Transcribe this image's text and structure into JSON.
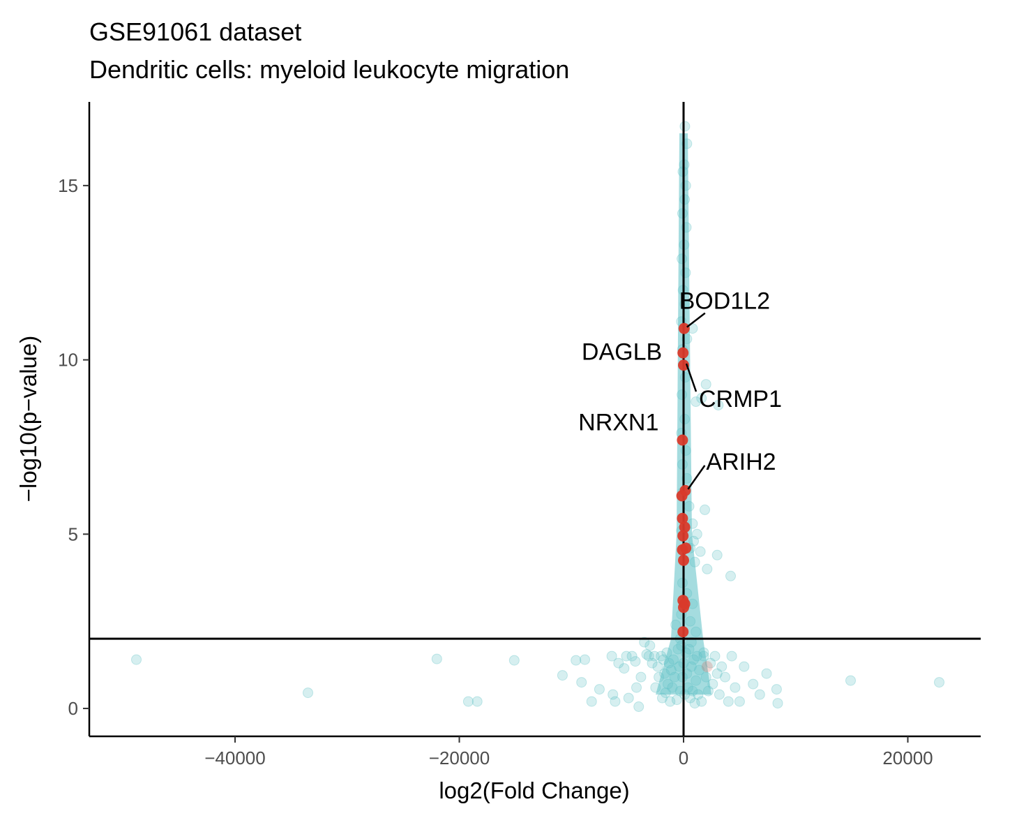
{
  "chart_data": {
    "type": "scatter",
    "title": "GSE91061 dataset",
    "subtitle": "Dendritic cells: myeloid leukocyte migration",
    "xlabel": "log2(Fold Change)",
    "ylabel": "−log10(p−value)",
    "xlim": [
      -53000,
      26500
    ],
    "ylim": [
      -0.8,
      17.4
    ],
    "x_ticks": [
      {
        "value": -40000,
        "label": "−40000"
      },
      {
        "value": -20000,
        "label": "−20000"
      },
      {
        "value": 0,
        "label": "0"
      },
      {
        "value": 20000,
        "label": "20000"
      }
    ],
    "y_ticks": [
      {
        "value": 0,
        "label": "0"
      },
      {
        "value": 5,
        "label": "5"
      },
      {
        "value": 10,
        "label": "10"
      },
      {
        "value": 15,
        "label": "15"
      }
    ],
    "reference_lines": {
      "vertical_x": 0,
      "horizontal_y": 2
    },
    "grid": false,
    "legend": "none",
    "colors": {
      "background_points": "#5bbfc4",
      "highlighted_points": "#d93a2b",
      "lines": "#000000"
    },
    "series": [
      {
        "points": [
          [
            -48800,
            1.4
          ],
          [
            -33500,
            0.45
          ],
          [
            -22000,
            1.42
          ],
          [
            -19200,
            0.2
          ],
          [
            -18400,
            0.2
          ],
          [
            -15100,
            1.38
          ],
          [
            -10800,
            0.95
          ],
          [
            -9600,
            1.38
          ],
          [
            -9100,
            0.75
          ],
          [
            -8800,
            1.4
          ],
          [
            -8200,
            0.2
          ],
          [
            -7500,
            0.55
          ],
          [
            -6400,
            1.5
          ],
          [
            -6300,
            0.4
          ],
          [
            -6100,
            0.2
          ],
          [
            -5800,
            1.3
          ],
          [
            -5300,
            1.15
          ],
          [
            -5100,
            1.5
          ],
          [
            -4900,
            0.3
          ],
          [
            -4600,
            1.5
          ],
          [
            -4300,
            1.35
          ],
          [
            -4200,
            0.6
          ],
          [
            -4000,
            0.05
          ],
          [
            -3800,
            0.9
          ],
          [
            -3500,
            1.9
          ],
          [
            -3300,
            1.55
          ],
          [
            -3100,
            1.5
          ],
          [
            -3000,
            1.8
          ],
          [
            -2800,
            1.3
          ],
          [
            -2600,
            1.5
          ],
          [
            -2500,
            0.6
          ],
          [
            -2300,
            1.2
          ],
          [
            -2200,
            0.9
          ],
          [
            -2000,
            1.5
          ],
          [
            -1900,
            0.3
          ],
          [
            -1800,
            1.4
          ],
          [
            -1700,
            1.0
          ],
          [
            -1600,
            0.45
          ],
          [
            -1500,
            1.6
          ],
          [
            -1400,
            0.7
          ],
          [
            -1300,
            1.3
          ],
          [
            -1200,
            0.2
          ],
          [
            -1100,
            1.1
          ],
          [
            -1000,
            0.6
          ],
          [
            -900,
            1.4
          ],
          [
            -800,
            0.9
          ],
          [
            -700,
            2.4
          ],
          [
            -600,
            0.25
          ],
          [
            -500,
            1.7
          ],
          [
            -400,
            1.2
          ],
          [
            -300,
            0.5
          ],
          [
            -200,
            1.8
          ],
          [
            -100,
            0.9
          ],
          [
            0,
            1.3
          ],
          [
            100,
            0.4
          ],
          [
            200,
            1.6
          ],
          [
            300,
            1.0
          ],
          [
            400,
            0.6
          ],
          [
            500,
            1.7
          ],
          [
            600,
            0.3
          ],
          [
            700,
            1.2
          ],
          [
            800,
            0.5
          ],
          [
            900,
            1.4
          ],
          [
            1000,
            0.15
          ],
          [
            1100,
            0.8
          ],
          [
            1200,
            1.5
          ],
          [
            1300,
            0.4
          ],
          [
            1400,
            1.1
          ],
          [
            1600,
            0.2
          ],
          [
            1800,
            1.6
          ],
          [
            2000,
            0.9
          ],
          [
            2200,
            0.5
          ],
          [
            2400,
            1.3
          ],
          [
            2600,
            0.7
          ],
          [
            2800,
            1.5
          ],
          [
            3000,
            1.0
          ],
          [
            3200,
            0.4
          ],
          [
            3400,
            1.2
          ],
          [
            3700,
            0.9
          ],
          [
            4000,
            0.2
          ],
          [
            4300,
            1.5
          ],
          [
            4600,
            0.6
          ],
          [
            5000,
            0.2
          ],
          [
            5400,
            1.2
          ],
          [
            6200,
            0.7
          ],
          [
            6800,
            0.4
          ],
          [
            7400,
            1.0
          ],
          [
            8300,
            0.55
          ],
          [
            8400,
            0.15
          ],
          [
            14900,
            0.8
          ],
          [
            22800,
            0.75
          ],
          [
            120,
            16.7
          ],
          [
            300,
            16.2
          ],
          [
            60,
            15.6
          ],
          [
            -60,
            15.4
          ],
          [
            200,
            15.0
          ],
          [
            100,
            14.6
          ],
          [
            -100,
            14.2
          ],
          [
            250,
            13.8
          ],
          [
            50,
            13.3
          ],
          [
            -150,
            12.9
          ],
          [
            180,
            12.5
          ],
          [
            -50,
            12.0
          ],
          [
            120,
            11.6
          ],
          [
            -200,
            11.1
          ],
          [
            800,
            10.9
          ],
          [
            300,
            10.6
          ],
          [
            -100,
            10.3
          ],
          [
            150,
            9.5
          ],
          [
            -150,
            9.0
          ],
          [
            1100,
            8.8
          ],
          [
            2000,
            9.3
          ],
          [
            1600,
            8.9
          ],
          [
            3100,
            8.7
          ],
          [
            100,
            8.3
          ],
          [
            -200,
            7.9
          ],
          [
            200,
            7.4
          ],
          [
            -100,
            7.0
          ],
          [
            300,
            6.6
          ],
          [
            -100,
            6.2
          ],
          [
            500,
            5.8
          ],
          [
            1900,
            5.7
          ],
          [
            800,
            5.3
          ],
          [
            -200,
            5.1
          ],
          [
            1200,
            5.0
          ],
          [
            900,
            4.8
          ],
          [
            600,
            4.6
          ],
          [
            1500,
            4.5
          ],
          [
            1000,
            4.2
          ],
          [
            3000,
            4.4
          ],
          [
            2100,
            4.0
          ],
          [
            4200,
            3.8
          ],
          [
            -100,
            3.6
          ],
          [
            300,
            3.3
          ],
          [
            800,
            3.0
          ],
          [
            -200,
            2.7
          ],
          [
            600,
            2.5
          ],
          [
            1100,
            2.2
          ],
          [
            -300,
            2.0
          ],
          [
            700,
            1.9
          ],
          [
            1800,
            1.5
          ]
        ]
      },
      {
        "points": [
          [
            50,
            10.9
          ],
          [
            -50,
            10.2
          ],
          [
            0,
            9.85
          ],
          [
            -100,
            7.7
          ],
          [
            150,
            6.25
          ],
          [
            -150,
            6.1
          ],
          [
            -100,
            5.45
          ],
          [
            100,
            5.2
          ],
          [
            -50,
            4.95
          ],
          [
            200,
            4.6
          ],
          [
            -100,
            4.55
          ],
          [
            0,
            4.25
          ],
          [
            -50,
            3.1
          ],
          [
            100,
            3.0
          ],
          [
            0,
            2.9
          ],
          [
            -50,
            2.2
          ],
          [
            2100,
            1.2
          ]
        ]
      }
    ],
    "annotations": [
      {
        "text": "BOD1L2",
        "x": 50,
        "y": 10.9
      },
      {
        "text": "DAGLB",
        "x": -50,
        "y": 10.2
      },
      {
        "text": "CRMP1",
        "x": 0,
        "y": 9.85
      },
      {
        "text": "NRXN1",
        "x": -100,
        "y": 7.7
      },
      {
        "text": "ARIH2",
        "x": 150,
        "y": 6.25
      }
    ]
  }
}
